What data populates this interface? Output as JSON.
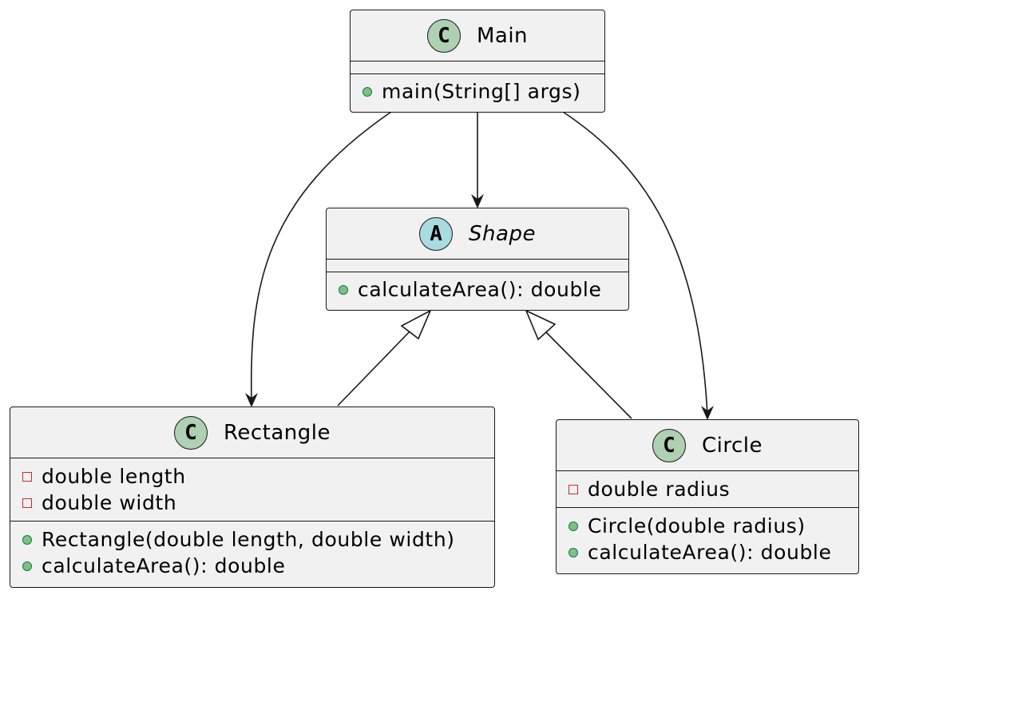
{
  "classes": {
    "main": {
      "stereotype_letter": "C",
      "name": "Main",
      "fields": [],
      "methods": [
        {
          "visibility": "public",
          "signature": "main(String[] args)"
        }
      ]
    },
    "shape": {
      "stereotype_letter": "A",
      "name": "Shape",
      "abstract": true,
      "fields": [],
      "methods": [
        {
          "visibility": "public",
          "signature": "calculateArea(): double"
        }
      ]
    },
    "rectangle": {
      "stereotype_letter": "C",
      "name": "Rectangle",
      "fields": [
        {
          "visibility": "private",
          "signature": "double length"
        },
        {
          "visibility": "private",
          "signature": "double width"
        }
      ],
      "methods": [
        {
          "visibility": "public",
          "signature": "Rectangle(double length, double width)"
        },
        {
          "visibility": "public",
          "signature": "calculateArea(): double"
        }
      ]
    },
    "circle": {
      "stereotype_letter": "C",
      "name": "Circle",
      "fields": [
        {
          "visibility": "private",
          "signature": "double radius"
        }
      ],
      "methods": [
        {
          "visibility": "public",
          "signature": "Circle(double radius)"
        },
        {
          "visibility": "public",
          "signature": "calculateArea(): double"
        }
      ]
    }
  },
  "relations": [
    {
      "from": "Main",
      "to": "Shape",
      "type": "association"
    },
    {
      "from": "Main",
      "to": "Rectangle",
      "type": "association"
    },
    {
      "from": "Main",
      "to": "Circle",
      "type": "association"
    },
    {
      "from": "Rectangle",
      "to": "Shape",
      "type": "inheritance"
    },
    {
      "from": "Circle",
      "to": "Shape",
      "type": "inheritance"
    }
  ],
  "colors": {
    "class_fill": "#f1f1f1",
    "border": "#181818",
    "class_badge": "#add1b2",
    "abstract_badge": "#a9dcdf",
    "public_marker": "#84be84",
    "private_marker": "#c82930"
  }
}
